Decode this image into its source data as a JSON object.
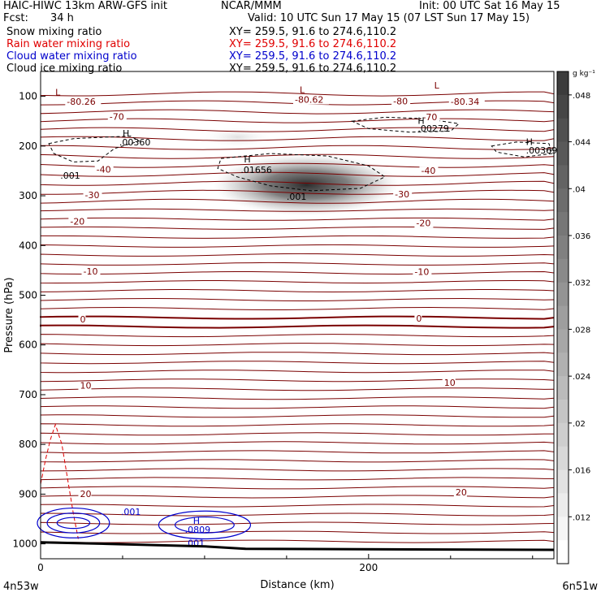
{
  "header": {
    "model": "HAIC-HIWC 13km ARW-GFS init",
    "org": "NCAR/MMM",
    "init": "Init: 00 UTC Sat 16 May 15",
    "fcst_label": "Fcst:",
    "fcst_value": "34 h",
    "valid": "Valid: 10 UTC Sun 17 May 15 (07 LST Sun 17 May 15)"
  },
  "fields": [
    {
      "name": "Snow mixing ratio",
      "xy": "XY= 259.5, 91.6 to 274.6,110.2",
      "color": "#000000"
    },
    {
      "name": "Rain water mixing ratio",
      "xy": "XY= 259.5, 91.6 to 274.6,110.2",
      "color": "#e00000"
    },
    {
      "name": "Cloud water mixing ratio",
      "xy": "XY= 259.5, 91.6 to 274.6,110.2",
      "color": "#0000cc"
    },
    {
      "name": "Cloud ice mixing ratio",
      "xy": "XY= 259.5, 91.6 to 274.6,110.2",
      "color": "#000000"
    }
  ],
  "chart_data": {
    "type": "heatmap",
    "xlabel": "Distance (km)",
    "ylabel": "Pressure (hPa)",
    "x_start_label": "4n53w",
    "x_end_label": "6n51w",
    "xlim": [
      0,
      313
    ],
    "ylim": [
      1030,
      50
    ],
    "x_ticks": [
      0,
      200
    ],
    "y_ticks": [
      100,
      200,
      300,
      400,
      500,
      600,
      700,
      800,
      900,
      1000
    ],
    "colorbar": {
      "units": "g kg⁻¹",
      "ticks": [
        ".048",
        ".044",
        ".04",
        ".036",
        ".032",
        ".028",
        ".024",
        ".02",
        ".016",
        ".012"
      ],
      "min": 0.008,
      "max": 0.05
    },
    "shaded_max": {
      "x_km": 162,
      "p_hpa": 278,
      "value": 0.0468
    },
    "temperature_contours": {
      "color": "#7a0000",
      "labels": [
        {
          "text": "-80.26",
          "x_km": 16,
          "p": 117
        },
        {
          "text": "-80.62",
          "x_km": 155,
          "p": 113
        },
        {
          "text": "-80.34",
          "x_km": 250,
          "p": 117
        },
        {
          "text": "-80",
          "x_km": 215,
          "p": 116
        },
        {
          "text": "-70",
          "x_km": 42,
          "p": 147
        },
        {
          "text": "-70",
          "x_km": 233,
          "p": 148
        },
        {
          "text": "-40",
          "x_km": 34,
          "p": 253
        },
        {
          "text": "-40",
          "x_km": 232,
          "p": 256
        },
        {
          "text": "-30",
          "x_km": 27,
          "p": 305
        },
        {
          "text": "-30",
          "x_km": 216,
          "p": 303
        },
        {
          "text": "-20",
          "x_km": 18,
          "p": 358
        },
        {
          "text": "-20",
          "x_km": 229,
          "p": 361
        },
        {
          "text": "-10",
          "x_km": 26,
          "p": 458
        },
        {
          "text": "-10",
          "x_km": 228,
          "p": 459
        },
        {
          "text": "0",
          "x_km": 24,
          "p": 555
        },
        {
          "text": "0",
          "x_km": 229,
          "p": 553
        },
        {
          "text": "10",
          "x_km": 24,
          "p": 688
        },
        {
          "text": "10",
          "x_km": 246,
          "p": 682
        },
        {
          "text": "20",
          "x_km": 24,
          "p": 906
        },
        {
          "text": "20",
          "x_km": 253,
          "p": 903
        }
      ]
    },
    "extrema_labels": [
      {
        "text": "L",
        "x_km": 9,
        "p": 98,
        "color": "#7a0000"
      },
      {
        "text": "L",
        "x_km": 158,
        "p": 93,
        "color": "#7a0000"
      },
      {
        "text": "L",
        "x_km": 240,
        "p": 84,
        "color": "#7a0000"
      },
      {
        "text": "H",
        "x_km": 50,
        "p": 181,
        "color": "#000000"
      },
      {
        "text": ".00360",
        "x_km": 48,
        "p": 199,
        "color": "#000000"
      },
      {
        "text": "H",
        "x_km": 124,
        "p": 233,
        "color": "#000000"
      },
      {
        "text": ".01656",
        "x_km": 122,
        "p": 254,
        "color": "#000000"
      },
      {
        "text": "H",
        "x_km": 230,
        "p": 155,
        "color": "#000000"
      },
      {
        "text": ".00279",
        "x_km": 230,
        "p": 171,
        "color": "#000000"
      },
      {
        "text": "H",
        "x_km": 296,
        "p": 198,
        "color": "#000000"
      },
      {
        "text": ".00369",
        "x_km": 296,
        "p": 215,
        "color": "#000000"
      },
      {
        "text": ".001",
        "x_km": 12,
        "p": 266,
        "color": "#000000"
      },
      {
        "text": ".001",
        "x_km": 150,
        "p": 308,
        "color": "#000000"
      },
      {
        "text": "H",
        "x_km": 93,
        "p": 960,
        "color": "#0000cc"
      },
      {
        "text": ".0809",
        "x_km": 88,
        "p": 978,
        "color": "#0000cc"
      },
      {
        "text": ".001",
        "x_km": 49,
        "p": 942,
        "color": "#0000cc"
      },
      {
        "text": ".001",
        "x_km": 88,
        "p": 1005,
        "color": "#0000cc"
      }
    ]
  }
}
